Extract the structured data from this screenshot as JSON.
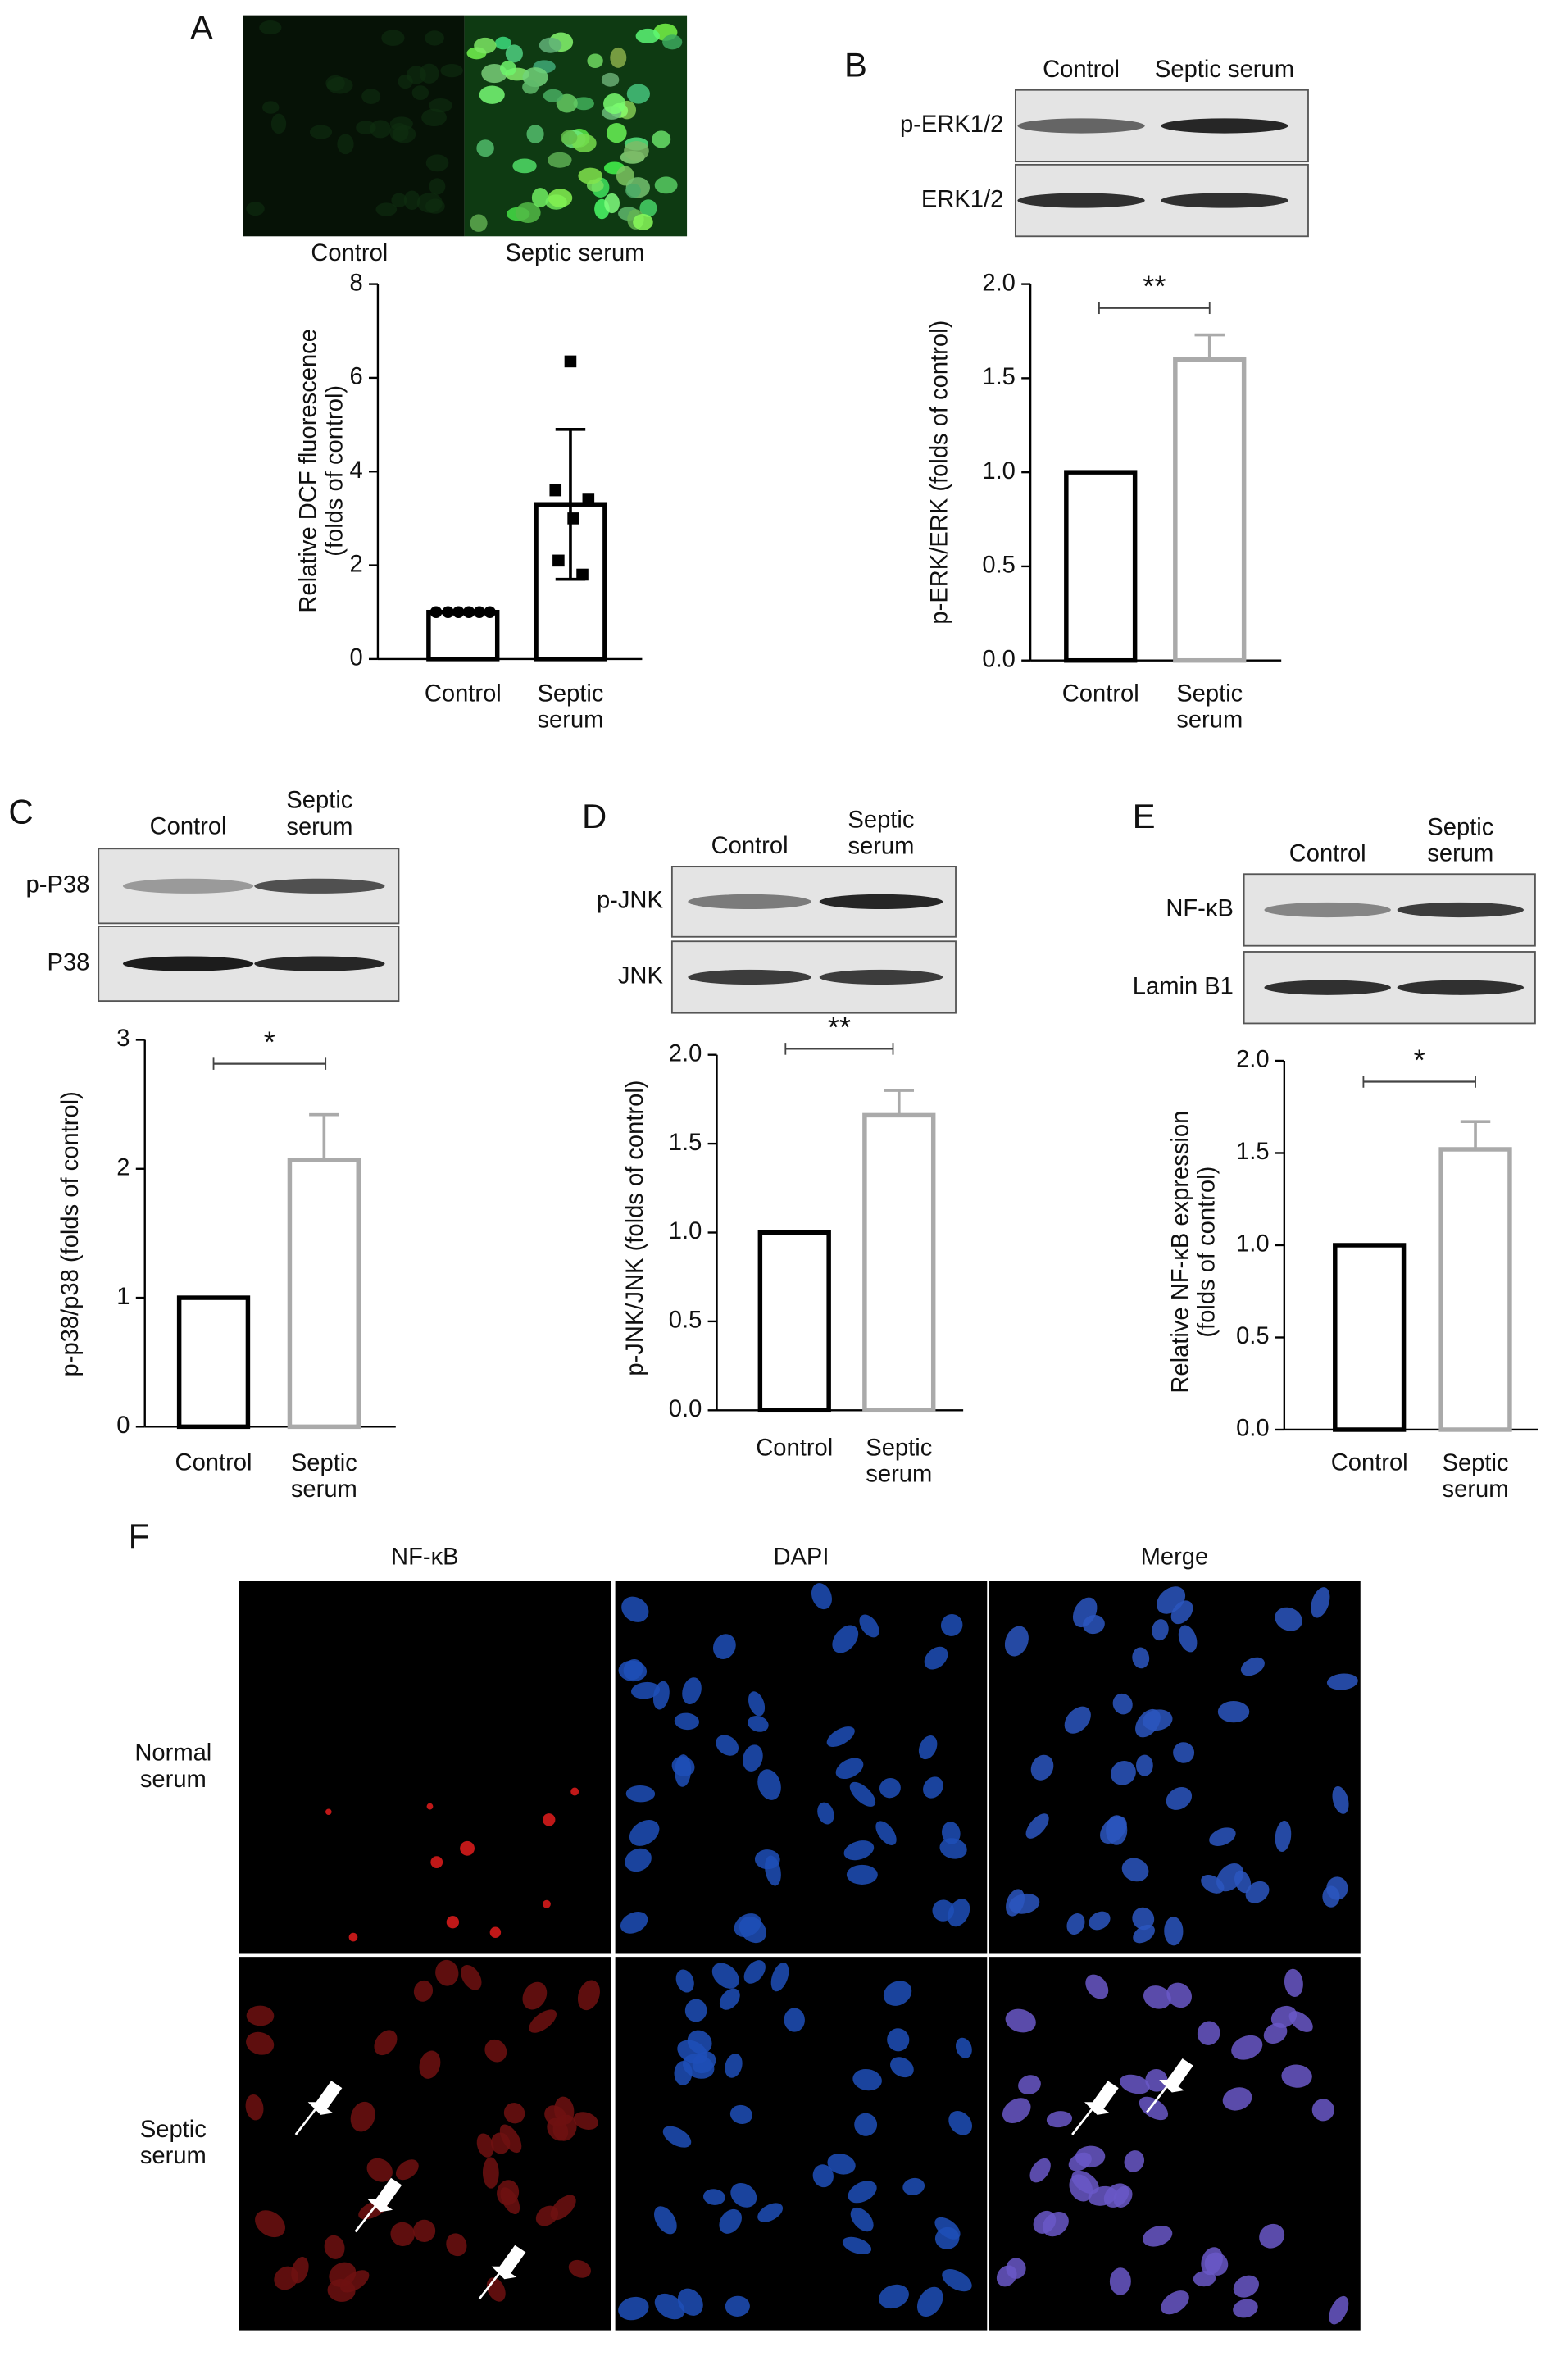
{
  "chart_data": [
    {
      "type": "bar",
      "panel": "A",
      "image_labels": [
        "Control",
        "Septic serum"
      ],
      "ylabel": "Relative DCF fluorescence\n(folds of control)",
      "categories": [
        "Control",
        "Septic\nserum"
      ],
      "values": [
        1,
        3.3
      ],
      "errors": [
        0,
        1.6
      ],
      "points": [
        [
          1,
          1,
          1,
          1,
          1,
          1
        ],
        [
          6.35,
          3.6,
          3.4,
          3.0,
          2.1,
          1.8
        ]
      ],
      "colors": [
        "#000000",
        "#000000"
      ],
      "ylim": [
        0,
        8
      ],
      "yticks": [
        0,
        2,
        4,
        6,
        8
      ]
    },
    {
      "type": "bar",
      "panel": "B",
      "blot": {
        "columns": [
          "Control",
          "Septic serum"
        ],
        "rows": [
          "p-ERK1/2",
          "ERK1/2"
        ]
      },
      "ylabel": "p-ERK/ERK (folds of control)",
      "significance": "**",
      "categories": [
        "Control",
        "Septic\nserum"
      ],
      "values": [
        1,
        1.6
      ],
      "errors": [
        0,
        0.13
      ],
      "colors": [
        "#000000",
        "#aaaaaa"
      ],
      "ylim": [
        0,
        2
      ],
      "yticks": [
        {
          "value": 0,
          "label": "0.0"
        },
        {
          "value": 0.5,
          "label": "0.5"
        },
        {
          "value": 1,
          "label": "1.0"
        },
        {
          "value": 1.5,
          "label": "1.5"
        },
        {
          "value": 2,
          "label": "2.0"
        }
      ]
    },
    {
      "type": "bar",
      "panel": "C",
      "blot": {
        "columns": [
          "Control",
          "Septic\nserum"
        ],
        "rows": [
          "p-P38",
          "P38"
        ]
      },
      "ylabel": "p-p38/p38 (folds of control)",
      "significance": "*",
      "categories": [
        "Control",
        "Septic\nserum"
      ],
      "values": [
        1,
        2.07
      ],
      "errors": [
        0,
        0.35
      ],
      "colors": [
        "#000000",
        "#aaaaaa"
      ],
      "ylim": [
        0,
        3
      ],
      "yticks": [
        0,
        1,
        2,
        3
      ]
    },
    {
      "type": "bar",
      "panel": "D",
      "blot": {
        "columns": [
          "Control",
          "Septic\nserum"
        ],
        "rows": [
          "p-JNK",
          "JNK"
        ]
      },
      "ylabel": "p-JNK/JNK (folds of control)",
      "significance": "**",
      "categories": [
        "Control",
        "Septic\nserum"
      ],
      "values": [
        1,
        1.66
      ],
      "errors": [
        0,
        0.14
      ],
      "colors": [
        "#000000",
        "#aaaaaa"
      ],
      "ylim": [
        0,
        2
      ],
      "yticks": [
        {
          "value": 0,
          "label": "0.0"
        },
        {
          "value": 0.5,
          "label": "0.5"
        },
        {
          "value": 1,
          "label": "1.0"
        },
        {
          "value": 1.5,
          "label": "1.5"
        },
        {
          "value": 2,
          "label": "2.0"
        }
      ]
    },
    {
      "type": "bar",
      "panel": "E",
      "blot": {
        "columns": [
          "Control",
          "Septic\nserum"
        ],
        "rows": [
          "NF-κB",
          "Lamin B1"
        ]
      },
      "ylabel": "Relative NF-κB expression\n(folds of control)",
      "significance": "*",
      "categories": [
        "Control",
        "Septic\nserum"
      ],
      "values": [
        1,
        1.52
      ],
      "errors": [
        0,
        0.15
      ],
      "colors": [
        "#000000",
        "#aaaaaa"
      ],
      "ylim": [
        0,
        2
      ],
      "yticks": [
        {
          "value": 0,
          "label": "0.0"
        },
        {
          "value": 0.5,
          "label": "0.5"
        },
        {
          "value": 1,
          "label": "1.0"
        },
        {
          "value": 1.5,
          "label": "1.5"
        },
        {
          "value": 2,
          "label": "2.0"
        }
      ]
    }
  ],
  "microscopy": {
    "panel": "F",
    "columns": [
      "NF-κB",
      "DAPI",
      "Merge"
    ],
    "rows": [
      "Normal\nserum",
      "Septic\nserum"
    ]
  }
}
